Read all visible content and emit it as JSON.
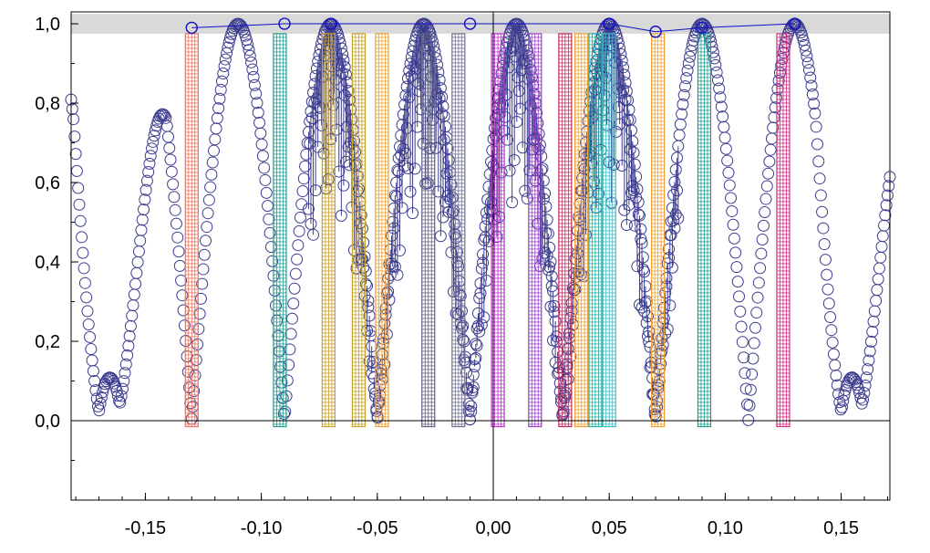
{
  "chart_data": {
    "type": "scatter",
    "title": "",
    "xlabel": "",
    "ylabel": "",
    "xlim": [
      -0.182,
      0.171
    ],
    "ylim": [
      -0.2,
      1.03
    ],
    "x_ticks": [
      -0.15,
      -0.1,
      -0.05,
      0.0,
      0.05,
      0.1,
      0.15
    ],
    "x_tick_labels": [
      "-0,15",
      "-0,10",
      "-0,05",
      "0,00",
      "0,05",
      "0,10",
      "0,15"
    ],
    "y_ticks": [
      0.0,
      0.2,
      0.4,
      0.6,
      0.8,
      1.0
    ],
    "y_tick_labels": [
      "0,0",
      "0,2",
      "0,4",
      "0,6",
      "0,8",
      "1,0"
    ],
    "grid": false,
    "legend": "none",
    "highlight_band": {
      "y_from": 0.975,
      "y_to": 1.025,
      "color": "#d9d9d9"
    },
    "envelope_series": {
      "color": "#3b3b8f",
      "x_from": -0.182,
      "x_to": 0.171,
      "points": 700,
      "lobe_period": 0.04,
      "lobe_center": 0.01,
      "minima": [
        {
          "x": -0.161,
          "y": 0.04
        },
        {
          "x": 0.159,
          "y": 0.04
        }
      ],
      "marked_points": [
        {
          "x": -0.13,
          "y": 0.99
        },
        {
          "x": -0.09,
          "y": 1.0
        },
        {
          "x": -0.07,
          "y": 1.0
        },
        {
          "x": -0.01,
          "y": 1.0
        },
        {
          "x": 0.05,
          "y": 1.0
        },
        {
          "x": 0.07,
          "y": 0.98
        },
        {
          "x": 0.09,
          "y": 0.99
        },
        {
          "x": 0.13,
          "y": 1.0
        }
      ]
    },
    "bars": [
      {
        "x": -0.13,
        "color": "#e8735a"
      },
      {
        "x": -0.092,
        "color": "#1e9e8c"
      },
      {
        "x": -0.071,
        "color": "#c9a227"
      },
      {
        "x": -0.058,
        "color": "#c9a227"
      },
      {
        "x": -0.048,
        "color": "#f0a030"
      },
      {
        "x": -0.028,
        "color": "#606080"
      },
      {
        "x": -0.015,
        "color": "#707090"
      },
      {
        "x": 0.002,
        "color": "#c02ccf"
      },
      {
        "x": 0.018,
        "color": "#9a3fc9"
      },
      {
        "x": 0.031,
        "color": "#c2285e"
      },
      {
        "x": 0.038,
        "color": "#f0a030"
      },
      {
        "x": 0.044,
        "color": "#20b0a0"
      },
      {
        "x": 0.05,
        "color": "#30c0c8"
      },
      {
        "x": 0.071,
        "color": "#f0a030"
      },
      {
        "x": 0.091,
        "color": "#1e9e8c"
      },
      {
        "x": 0.125,
        "color": "#d6297f"
      }
    ],
    "bar_bottom": -0.015,
    "bar_top": 0.975
  }
}
